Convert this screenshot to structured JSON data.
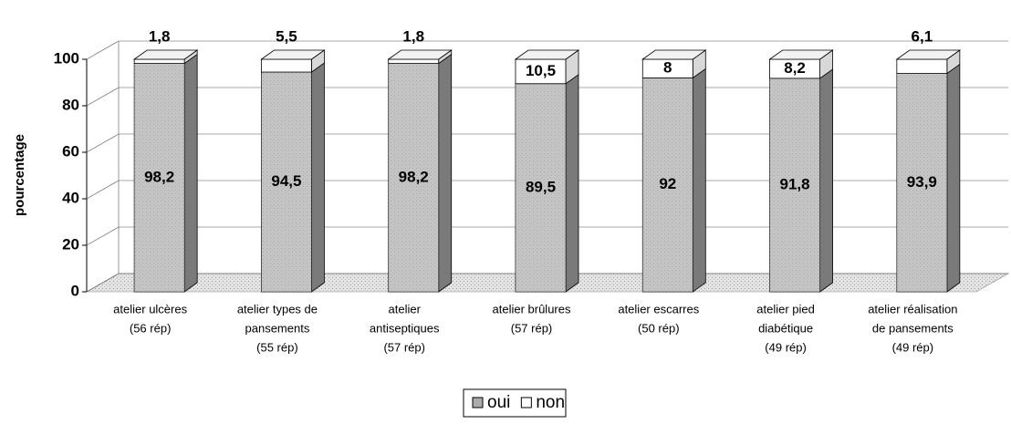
{
  "chart_data": {
    "type": "stacked_bar_3d",
    "y_label": "pourcentage",
    "categories": [
      [
        "atelier ulcères",
        "(56 rép)"
      ],
      [
        "atelier types de",
        "pansements",
        "(55 rép)"
      ],
      [
        "atelier",
        "antiseptiques",
        "(57 rép)"
      ],
      [
        "atelier brûlures",
        "(57 rép)"
      ],
      [
        "atelier escarres",
        "(50 rép)"
      ],
      [
        "atelier pied",
        "diabétique",
        "(49 rép)"
      ],
      [
        "atelier réalisation",
        "de pansements",
        "(49 rép)"
      ]
    ],
    "series": [
      {
        "name": "oui",
        "color": "#ababab",
        "values": [
          98.2,
          94.5,
          98.2,
          89.5,
          92,
          91.8,
          93.9
        ],
        "value_labels": [
          "98,2",
          "94,5",
          "98,2",
          "89,5",
          "92",
          "91,8",
          "93,9"
        ]
      },
      {
        "name": "non",
        "color": "#ffffff",
        "values": [
          1.8,
          5.5,
          1.8,
          10.5,
          8,
          8.2,
          6.1
        ],
        "value_labels": [
          "1,8",
          "5,5",
          "1,8",
          "10,5",
          "8",
          "8,2",
          "6,1"
        ]
      }
    ],
    "ylim": [
      0,
      100
    ],
    "yticks": [
      0,
      20,
      40,
      60,
      80,
      100
    ],
    "grid": true,
    "legend": "bottom"
  }
}
